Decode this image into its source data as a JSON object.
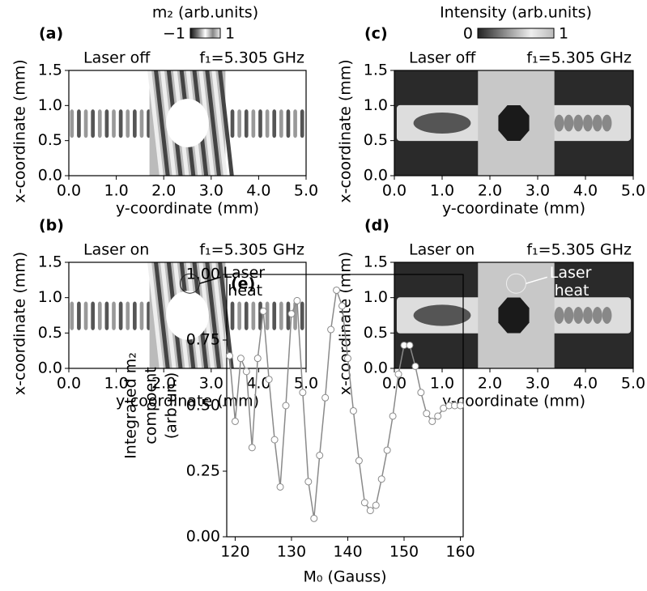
{
  "chart_data": [
    {
      "type": "image",
      "title": "(a)",
      "colormap": "mz",
      "annotations": [
        "Laser off",
        "f₁=5.305 GHz"
      ],
      "colorbar_label": "m₂ (arb.units)",
      "clim": [
        -1,
        1
      ],
      "cticks": [
        {
          "value": -1,
          "label": "−1"
        },
        1
      ],
      "xlabel": "y-coordinate (mm)",
      "ylabel": "x-coordinate (mm)",
      "xlim": [
        0,
        5
      ],
      "xticks": [
        {
          "value": 0,
          "label": "0.0"
        },
        {
          "value": 1,
          "label": "1.0"
        },
        {
          "value": 2,
          "label": "2.0"
        },
        {
          "value": 3,
          "label": "3.0"
        },
        {
          "value": 4,
          "label": "4.0"
        },
        {
          "value": 5,
          "label": "5.0"
        }
      ],
      "ylim": [
        0,
        1.5
      ],
      "yticks": [
        {
          "value": 0,
          "label": "0.0"
        },
        0.5,
        {
          "value": 1,
          "label": "1.0"
        },
        1.5
      ]
    },
    {
      "type": "image",
      "title": "(b)",
      "colormap": "mz",
      "annotations": [
        "Laser on",
        "f₁=5.305 GHz",
        "Laser heat"
      ],
      "xlabel": "y-coordinate (mm)",
      "ylabel": "x-coordinate (mm)",
      "xlim": [
        0,
        5
      ],
      "xticks": [
        {
          "value": 0,
          "label": "0.0"
        },
        {
          "value": 1,
          "label": "1.0"
        },
        {
          "value": 2,
          "label": "2.0"
        },
        {
          "value": 3,
          "label": "3.0"
        },
        {
          "value": 4,
          "label": "4.0"
        },
        {
          "value": 5,
          "label": "5.0"
        }
      ],
      "ylim": [
        0,
        1.5
      ],
      "yticks": [
        {
          "value": 0,
          "label": "0.0"
        },
        0.5,
        {
          "value": 1,
          "label": "1.0"
        },
        1.5
      ]
    },
    {
      "type": "image",
      "title": "(c)",
      "colormap": "intensity",
      "annotations": [
        "Laser off",
        "f₁=5.305 GHz"
      ],
      "colorbar_label": "Intensity (arb.units)",
      "clim": [
        0,
        1
      ],
      "cticks": [
        0,
        1
      ],
      "xlabel": "y-coordinate (mm)",
      "ylabel": "x-coordinate (mm)",
      "xlim": [
        0,
        5
      ],
      "xticks": [
        {
          "value": 0,
          "label": "0.0"
        },
        {
          "value": 1,
          "label": "1.0"
        },
        {
          "value": 2,
          "label": "2.0"
        },
        {
          "value": 3,
          "label": "3.0"
        },
        {
          "value": 4,
          "label": "4.0"
        },
        {
          "value": 5,
          "label": "5.0"
        }
      ],
      "ylim": [
        0,
        1.5
      ],
      "yticks": [
        {
          "value": 0,
          "label": "0.0"
        },
        0.5,
        {
          "value": 1,
          "label": "1.0"
        },
        1.5
      ]
    },
    {
      "type": "image",
      "title": "(d)",
      "colormap": "intensity",
      "annotations": [
        "Laser on",
        "f₁=5.305 GHz",
        "Laser heat"
      ],
      "xlabel": "y-coordinate (mm)",
      "ylabel": "x-coordinate (mm)",
      "xlim": [
        0,
        5
      ],
      "xticks": [
        {
          "value": 0,
          "label": "0.0"
        },
        {
          "value": 1,
          "label": "1.0"
        },
        {
          "value": 2,
          "label": "2.0"
        },
        {
          "value": 3,
          "label": "3.0"
        },
        {
          "value": 4,
          "label": "4.0"
        },
        {
          "value": 5,
          "label": "5.0"
        }
      ],
      "ylim": [
        0,
        1.5
      ],
      "yticks": [
        {
          "value": 0,
          "label": "0.0"
        },
        0.5,
        {
          "value": 1,
          "label": "1.0"
        },
        1.5
      ]
    },
    {
      "type": "line",
      "title": "(e)",
      "color": "#8a8a8a",
      "xlabel": "M₀ (Gauss)",
      "ylabel": [
        "Integrated m₂",
        "compoent",
        "(arb.un.)"
      ],
      "x": [
        119,
        120,
        121,
        122,
        123,
        124,
        125,
        126,
        127,
        128,
        129,
        130,
        131,
        132,
        133,
        134,
        135,
        136,
        137,
        138,
        139,
        140,
        141,
        142,
        143,
        144,
        145,
        146,
        147,
        148,
        149,
        150,
        151,
        152,
        153,
        154,
        155,
        156,
        157,
        158,
        159,
        160
      ],
      "values": [
        0.69,
        0.44,
        0.68,
        0.63,
        0.34,
        0.68,
        0.86,
        0.6,
        0.37,
        0.19,
        0.5,
        0.85,
        0.9,
        0.55,
        0.21,
        0.07,
        0.31,
        0.53,
        0.79,
        0.94,
        0.88,
        0.68,
        0.48,
        0.29,
        0.13,
        0.1,
        0.12,
        0.22,
        0.33,
        0.46,
        0.62,
        0.73,
        0.73,
        0.65,
        0.55,
        0.47,
        0.44,
        0.46,
        0.49,
        0.5,
        0.5,
        0.5
      ],
      "xlim": [
        118.5,
        160.5
      ],
      "xticks": [
        120,
        130,
        140,
        150,
        160
      ],
      "ylim": [
        0,
        1
      ],
      "yticks": [
        {
          "value": 0,
          "label": "0.00"
        },
        0.25,
        {
          "value": 0.5,
          "label": "0.50"
        },
        0.75,
        {
          "value": 1,
          "label": "1.00"
        }
      ]
    }
  ]
}
